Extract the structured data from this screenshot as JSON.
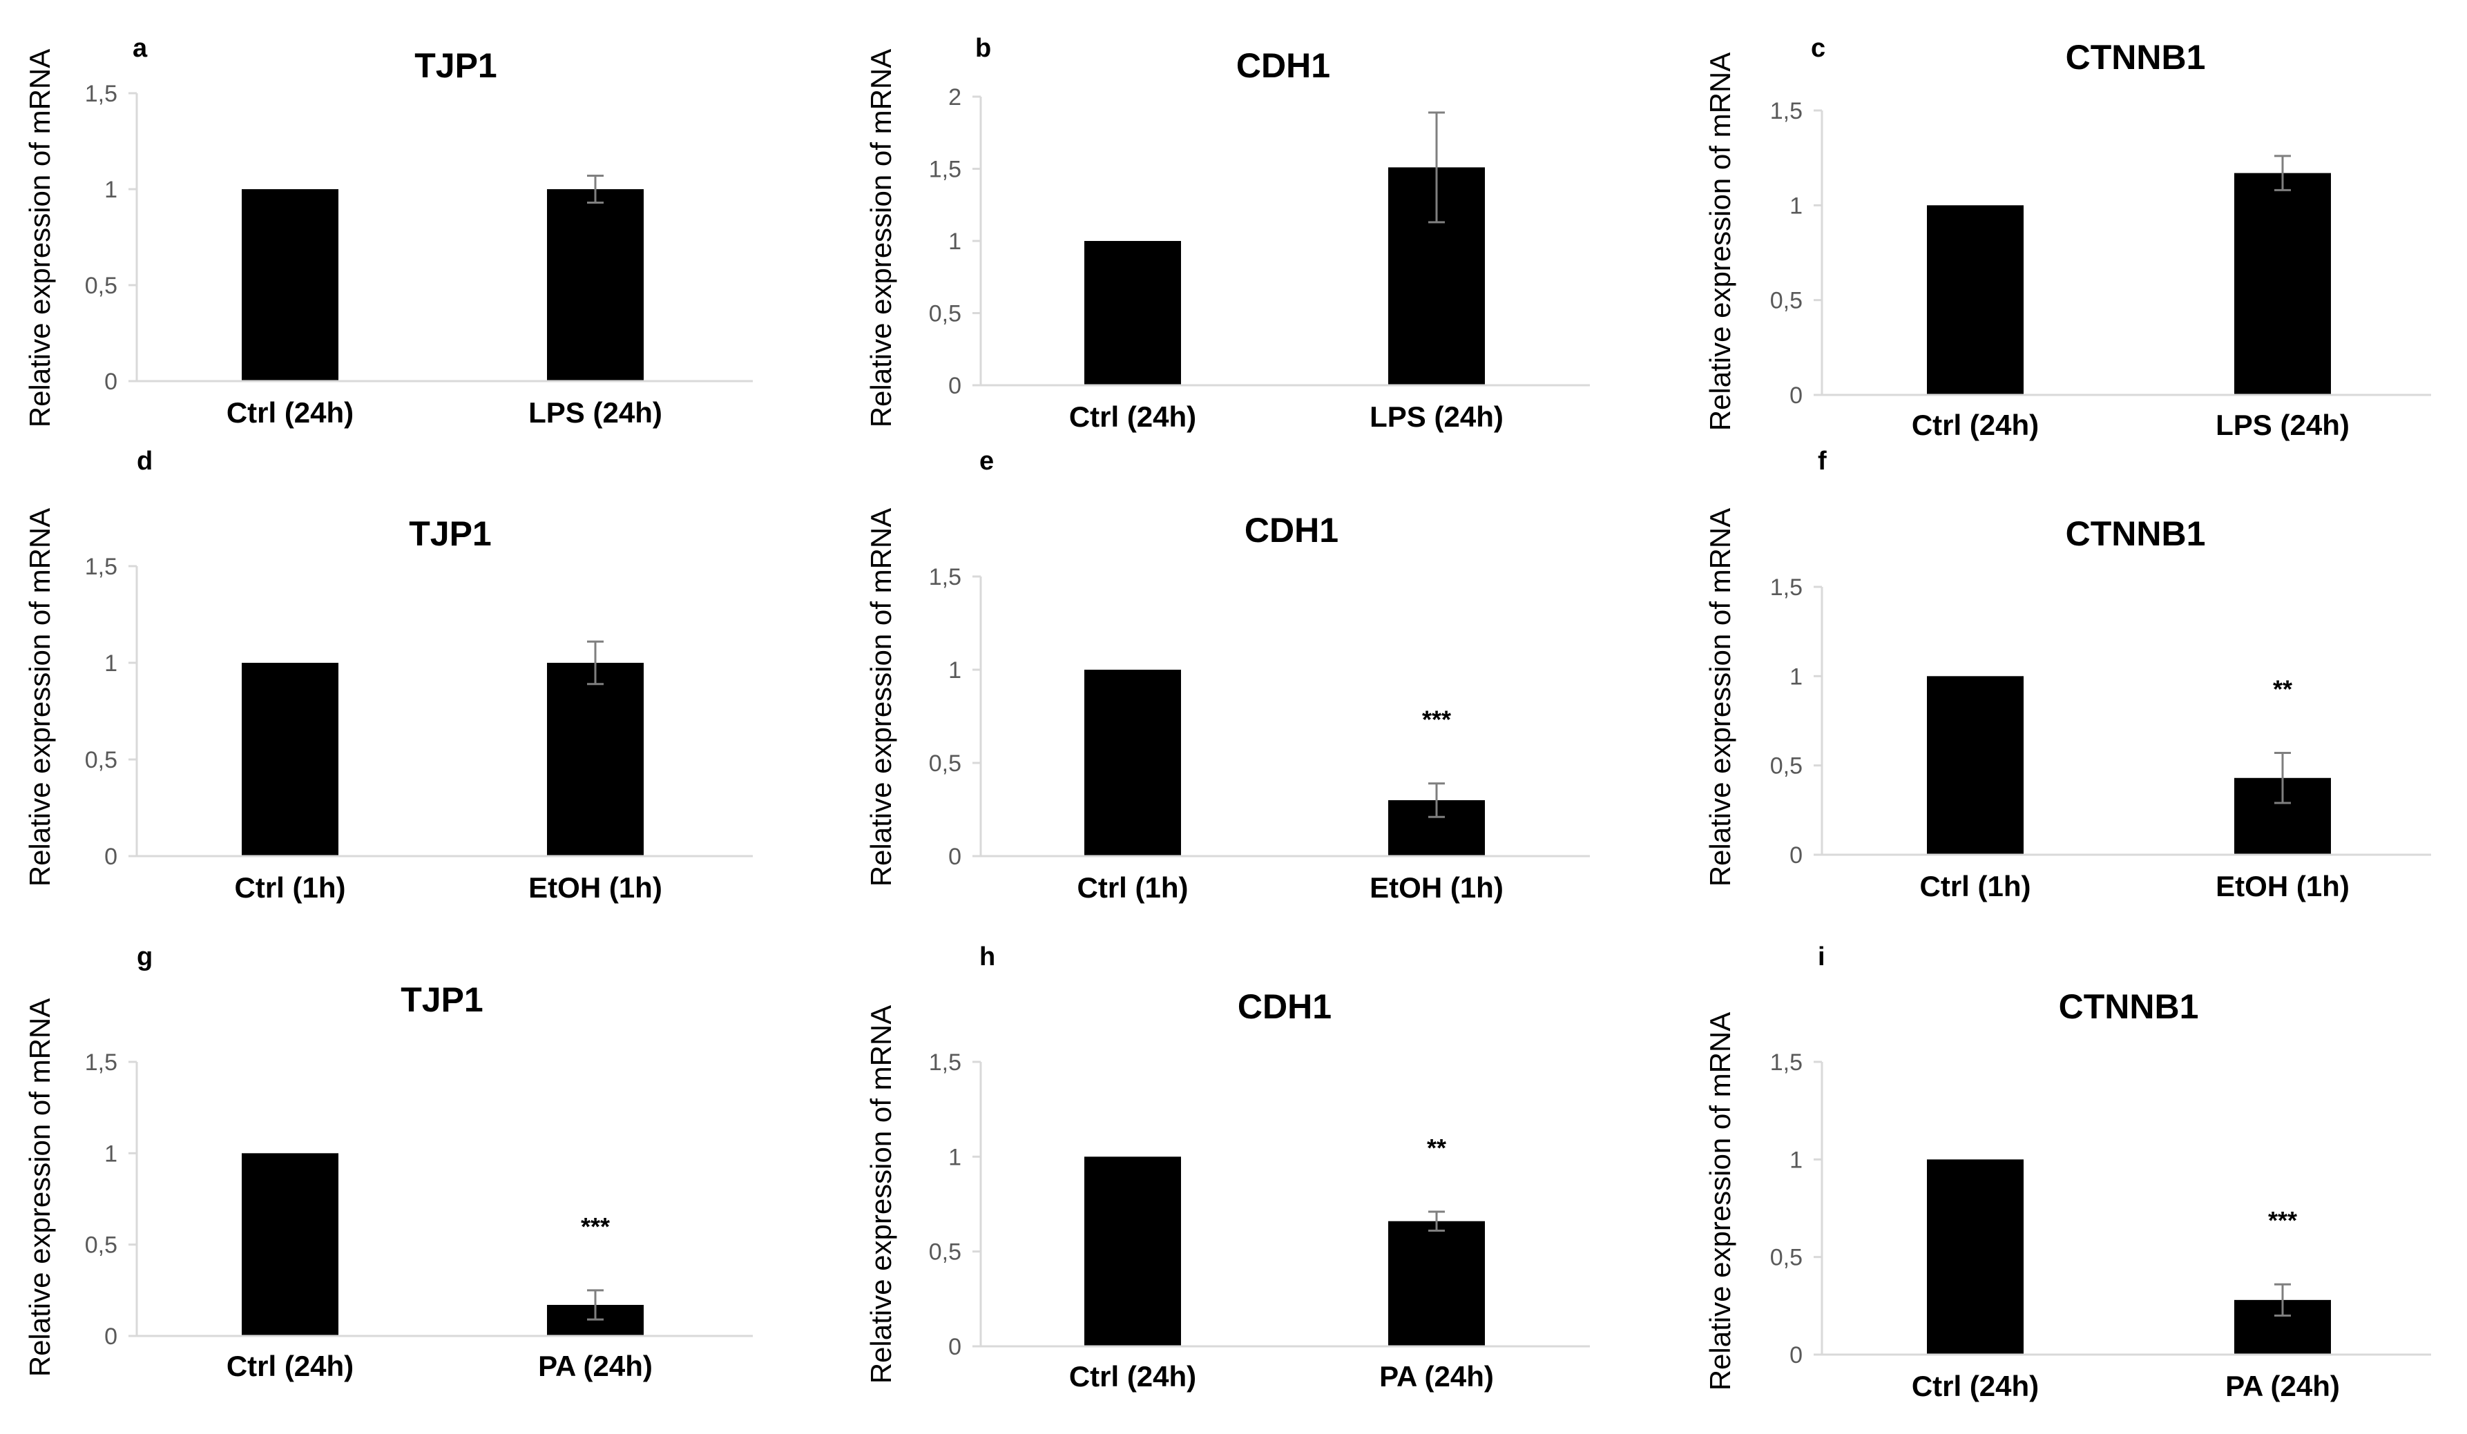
{
  "colors": {
    "bar": "#000000",
    "axis": "#d9d9d9",
    "tick_text": "#595959",
    "text": "#000000",
    "error": "#7f7f7f"
  },
  "chart_data": [
    {
      "id": "a",
      "panel_label": "a",
      "type": "bar",
      "title": "TJP1",
      "ylabel": "Relative expression of mRNA",
      "ylim": [
        0,
        1.5
      ],
      "yticks": [
        "0",
        "0,5",
        "1",
        "1,5"
      ],
      "categories": [
        "Ctrl (24h)",
        "LPS (24h)"
      ],
      "values": [
        1.0,
        1.0
      ],
      "errors": [
        0.0,
        0.07
      ],
      "significance": [
        "",
        ""
      ]
    },
    {
      "id": "b",
      "panel_label": "b",
      "type": "bar",
      "title": "CDH1",
      "ylabel": "Relative expression of mRNA",
      "ylim": [
        0,
        2
      ],
      "yticks": [
        "0",
        "0,5",
        "1",
        "1,5",
        "2"
      ],
      "categories": [
        "Ctrl (24h)",
        "LPS (24h)"
      ],
      "values": [
        1.0,
        1.51
      ],
      "errors": [
        0.0,
        0.38
      ],
      "significance": [
        "",
        ""
      ]
    },
    {
      "id": "c",
      "panel_label": "c",
      "type": "bar",
      "title": "CTNNB1",
      "ylabel": "Relative expression of mRNA",
      "ylim": [
        0,
        1.5
      ],
      "yticks": [
        "0",
        "0,5",
        "1",
        "1,5"
      ],
      "categories": [
        "Ctrl (24h)",
        "LPS (24h)"
      ],
      "values": [
        1.0,
        1.17
      ],
      "errors": [
        0.0,
        0.09
      ],
      "significance": [
        "",
        ""
      ]
    },
    {
      "id": "d",
      "panel_label": "d",
      "type": "bar",
      "title": "TJP1",
      "ylabel": "Relative expression of mRNA",
      "ylim": [
        0,
        1.5
      ],
      "yticks": [
        "0",
        "0,5",
        "1",
        "1,5"
      ],
      "categories": [
        "Ctrl (1h)",
        "EtOH (1h)"
      ],
      "values": [
        1.0,
        1.0
      ],
      "errors": [
        0.0,
        0.11
      ],
      "significance": [
        "",
        ""
      ]
    },
    {
      "id": "e",
      "panel_label": "e",
      "type": "bar",
      "title": "CDH1",
      "ylabel": "Relative expression of mRNA",
      "ylim": [
        0,
        1.5
      ],
      "yticks": [
        "0",
        "0,5",
        "1",
        "1,5"
      ],
      "categories": [
        "Ctrl (1h)",
        "EtOH (1h)"
      ],
      "values": [
        1.0,
        0.3
      ],
      "errors": [
        0.0,
        0.09
      ],
      "significance": [
        "",
        "***"
      ]
    },
    {
      "id": "f",
      "panel_label": "f",
      "type": "bar",
      "title": "CTNNB1",
      "ylabel": "Relative expression of mRNA",
      "ylim": [
        0,
        1.5
      ],
      "yticks": [
        "0",
        "0,5",
        "1",
        "1,5"
      ],
      "categories": [
        "Ctrl (1h)",
        "EtOH (1h)"
      ],
      "values": [
        1.0,
        0.43
      ],
      "errors": [
        0.0,
        0.14
      ],
      "significance": [
        "",
        "**"
      ]
    },
    {
      "id": "g",
      "panel_label": "g",
      "type": "bar",
      "title": "TJP1",
      "ylabel": "Relative expression of mRNA",
      "ylim": [
        0,
        1.5
      ],
      "yticks": [
        "0",
        "0,5",
        "1",
        "1,5"
      ],
      "categories": [
        "Ctrl (24h)",
        "PA (24h)"
      ],
      "values": [
        1.0,
        0.17
      ],
      "errors": [
        0.0,
        0.08
      ],
      "significance": [
        "",
        "***"
      ]
    },
    {
      "id": "h",
      "panel_label": "h",
      "type": "bar",
      "title": "CDH1",
      "ylabel": "Relative expression of mRNA",
      "ylim": [
        0,
        1.5
      ],
      "yticks": [
        "0",
        "0,5",
        "1",
        "1,5"
      ],
      "categories": [
        "Ctrl (24h)",
        "PA (24h)"
      ],
      "values": [
        1.0,
        0.66
      ],
      "errors": [
        0.0,
        0.05
      ],
      "significance": [
        "",
        "**"
      ]
    },
    {
      "id": "i",
      "panel_label": "i",
      "type": "bar",
      "title": "CTNNB1",
      "ylabel": "Relative expression of mRNA",
      "ylim": [
        0,
        1.5
      ],
      "yticks": [
        "0",
        "0,5",
        "1",
        "1,5"
      ],
      "categories": [
        "Ctrl (24h)",
        "PA (24h)"
      ],
      "values": [
        1.0,
        0.28
      ],
      "errors": [
        0.0,
        0.08
      ],
      "significance": [
        "",
        "***"
      ]
    }
  ]
}
